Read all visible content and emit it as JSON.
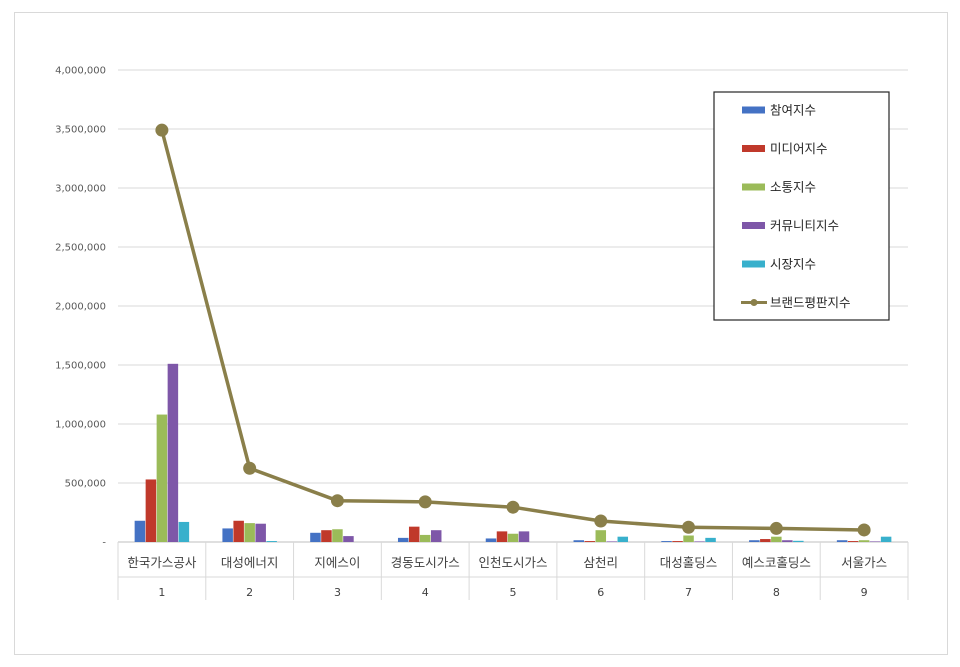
{
  "chart_data": {
    "type": "bar",
    "categories": [
      "한국가스공사",
      "대성에너지",
      "지에스이",
      "경동도시가스",
      "인천도시가스",
      "삼천리",
      "대성홀딩스",
      "예스코홀딩스",
      "서울가스"
    ],
    "ranks": [
      "1",
      "2",
      "3",
      "4",
      "5",
      "6",
      "7",
      "8",
      "9"
    ],
    "ylim": [
      0,
      4000000
    ],
    "yticks": [
      "-",
      "500,000",
      "1,000,000",
      "1,500,000",
      "2,000,000",
      "2,500,000",
      "3,000,000",
      "3,500,000",
      "4,000,000"
    ],
    "grid": true,
    "legend_position": "top-right",
    "series": [
      {
        "name": "참여지수",
        "type": "bar",
        "color": "#4472C4",
        "values": [
          180000,
          115000,
          78000,
          35000,
          30000,
          15000,
          8000,
          15000,
          15000
        ]
      },
      {
        "name": "미디어지수",
        "type": "bar",
        "color": "#C0392B",
        "values": [
          530000,
          180000,
          100000,
          130000,
          90000,
          8000,
          8000,
          25000,
          8000
        ]
      },
      {
        "name": "소통지수",
        "type": "bar",
        "color": "#9BBB59",
        "values": [
          1080000,
          160000,
          108000,
          60000,
          70000,
          100000,
          55000,
          45000,
          15000
        ]
      },
      {
        "name": "커뮤니티지수",
        "type": "bar",
        "color": "#7E57A8",
        "values": [
          1510000,
          155000,
          50000,
          100000,
          90000,
          5000,
          5000,
          15000,
          5000
        ]
      },
      {
        "name": "시장지수",
        "type": "bar",
        "color": "#38B0CC",
        "values": [
          170000,
          8000,
          0,
          0,
          0,
          45000,
          35000,
          10000,
          45000
        ]
      },
      {
        "name": "브랜드평판지수",
        "type": "line",
        "color": "#8A7F4A",
        "values": [
          3490000,
          625000,
          350000,
          340000,
          295000,
          178000,
          125000,
          115000,
          102000
        ]
      }
    ]
  }
}
